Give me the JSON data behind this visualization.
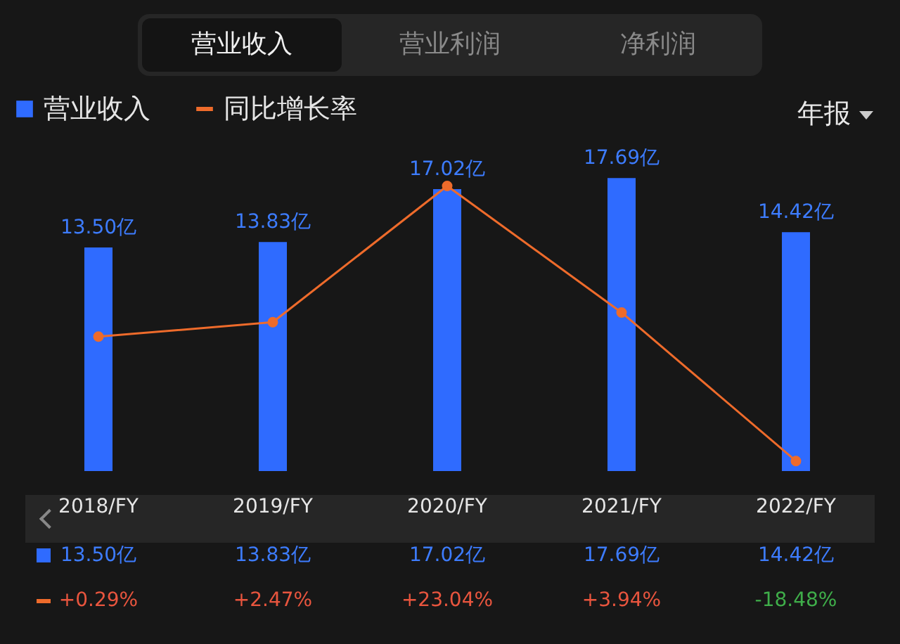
{
  "chart_data": {
    "type": "bar",
    "categories": [
      "2018/FY",
      "2019/FY",
      "2020/FY",
      "2021/FY",
      "2022/FY"
    ],
    "series": [
      {
        "name": "营业收入",
        "color": "#2f6bff",
        "values": [
          13.5,
          13.83,
          17.02,
          17.69,
          14.42
        ],
        "value_labels": [
          "13.50亿",
          "13.83亿",
          "17.02亿",
          "17.69亿",
          "14.42亿"
        ]
      },
      {
        "name": "同比增长率",
        "type": "line",
        "axis": "y2",
        "color": "#ee6b2b",
        "values": [
          0.29,
          2.47,
          23.04,
          3.94,
          -18.48
        ],
        "value_labels": [
          "+0.29%",
          "+2.47%",
          "+23.04%",
          "+3.94%",
          "-18.48%"
        ]
      }
    ],
    "marker": "circle",
    "legend": "top left",
    "annotations": [
      "营业收入",
      "营业利润",
      "净利润",
      "年报"
    ]
  }
}
